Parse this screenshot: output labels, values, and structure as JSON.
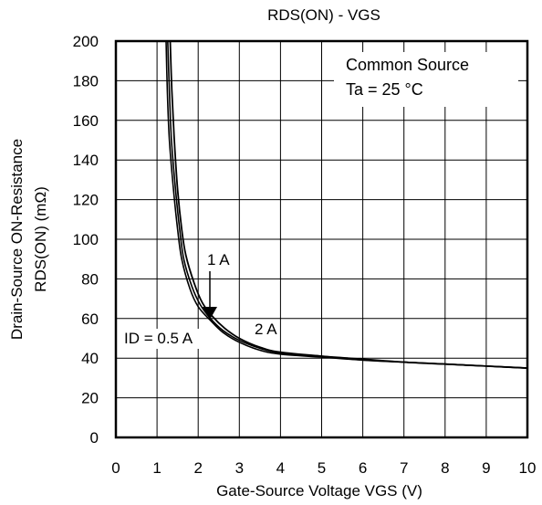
{
  "chart_data": {
    "type": "line",
    "title": "RDS(ON) - VGS",
    "xlabel": "Gate-Source Voltage VGS  (V)",
    "ylabel_lines": [
      "Drain-Source ON-Resistance",
      "RDS(ON)  (mΩ)"
    ],
    "xlim": [
      0,
      10
    ],
    "ylim": [
      0,
      200
    ],
    "x_ticks": [
      "0",
      "1",
      "2",
      "3",
      "4",
      "5",
      "6",
      "7",
      "8",
      "9",
      "10"
    ],
    "y_ticks": [
      "0",
      "20",
      "40",
      "60",
      "80",
      "100",
      "120",
      "140",
      "160",
      "180",
      "200"
    ],
    "grid": true,
    "conditions": [
      "Common Source",
      "Ta = 25 °C"
    ],
    "series": [
      {
        "name": "ID = 0.5 A",
        "values": [
          [
            1.22,
            200
          ],
          [
            1.25,
            175
          ],
          [
            1.3,
            150
          ],
          [
            1.4,
            125
          ],
          [
            1.5,
            105
          ],
          [
            1.6,
            90
          ],
          [
            1.8,
            75
          ],
          [
            2.0,
            66
          ],
          [
            2.3,
            59
          ],
          [
            2.6,
            53
          ],
          [
            3.0,
            48
          ],
          [
            3.5,
            44
          ],
          [
            4.0,
            42
          ],
          [
            5.0,
            40.5
          ],
          [
            6.0,
            39
          ],
          [
            7.0,
            38
          ],
          [
            8.0,
            37
          ],
          [
            9.0,
            36
          ],
          [
            10.0,
            35
          ]
        ]
      },
      {
        "name": "1 A",
        "values": [
          [
            1.26,
            200
          ],
          [
            1.3,
            175
          ],
          [
            1.35,
            150
          ],
          [
            1.45,
            125
          ],
          [
            1.55,
            105
          ],
          [
            1.65,
            90
          ],
          [
            1.85,
            76
          ],
          [
            2.05,
            67
          ],
          [
            2.3,
            60
          ],
          [
            2.6,
            54
          ],
          [
            3.0,
            49
          ],
          [
            3.5,
            45
          ],
          [
            4.0,
            42.5
          ],
          [
            5.0,
            41
          ],
          [
            6.0,
            39
          ],
          [
            7.0,
            38
          ],
          [
            8.0,
            37
          ],
          [
            9.0,
            36
          ],
          [
            10.0,
            35
          ]
        ]
      },
      {
        "name": "2 A",
        "values": [
          [
            1.32,
            200
          ],
          [
            1.36,
            175
          ],
          [
            1.42,
            150
          ],
          [
            1.5,
            125
          ],
          [
            1.6,
            105
          ],
          [
            1.7,
            92
          ],
          [
            1.9,
            78
          ],
          [
            2.1,
            68
          ],
          [
            2.35,
            61
          ],
          [
            2.65,
            55
          ],
          [
            3.0,
            50
          ],
          [
            3.5,
            45.5
          ],
          [
            4.0,
            43
          ],
          [
            5.0,
            41
          ],
          [
            6.0,
            39.5
          ],
          [
            7.0,
            38
          ],
          [
            8.0,
            37
          ],
          [
            9.0,
            36
          ],
          [
            10.0,
            35
          ]
        ]
      }
    ],
    "annotations": {
      "id_05": "ID = 0.5 A",
      "id_1": "1 A",
      "id_2": "2 A"
    }
  }
}
